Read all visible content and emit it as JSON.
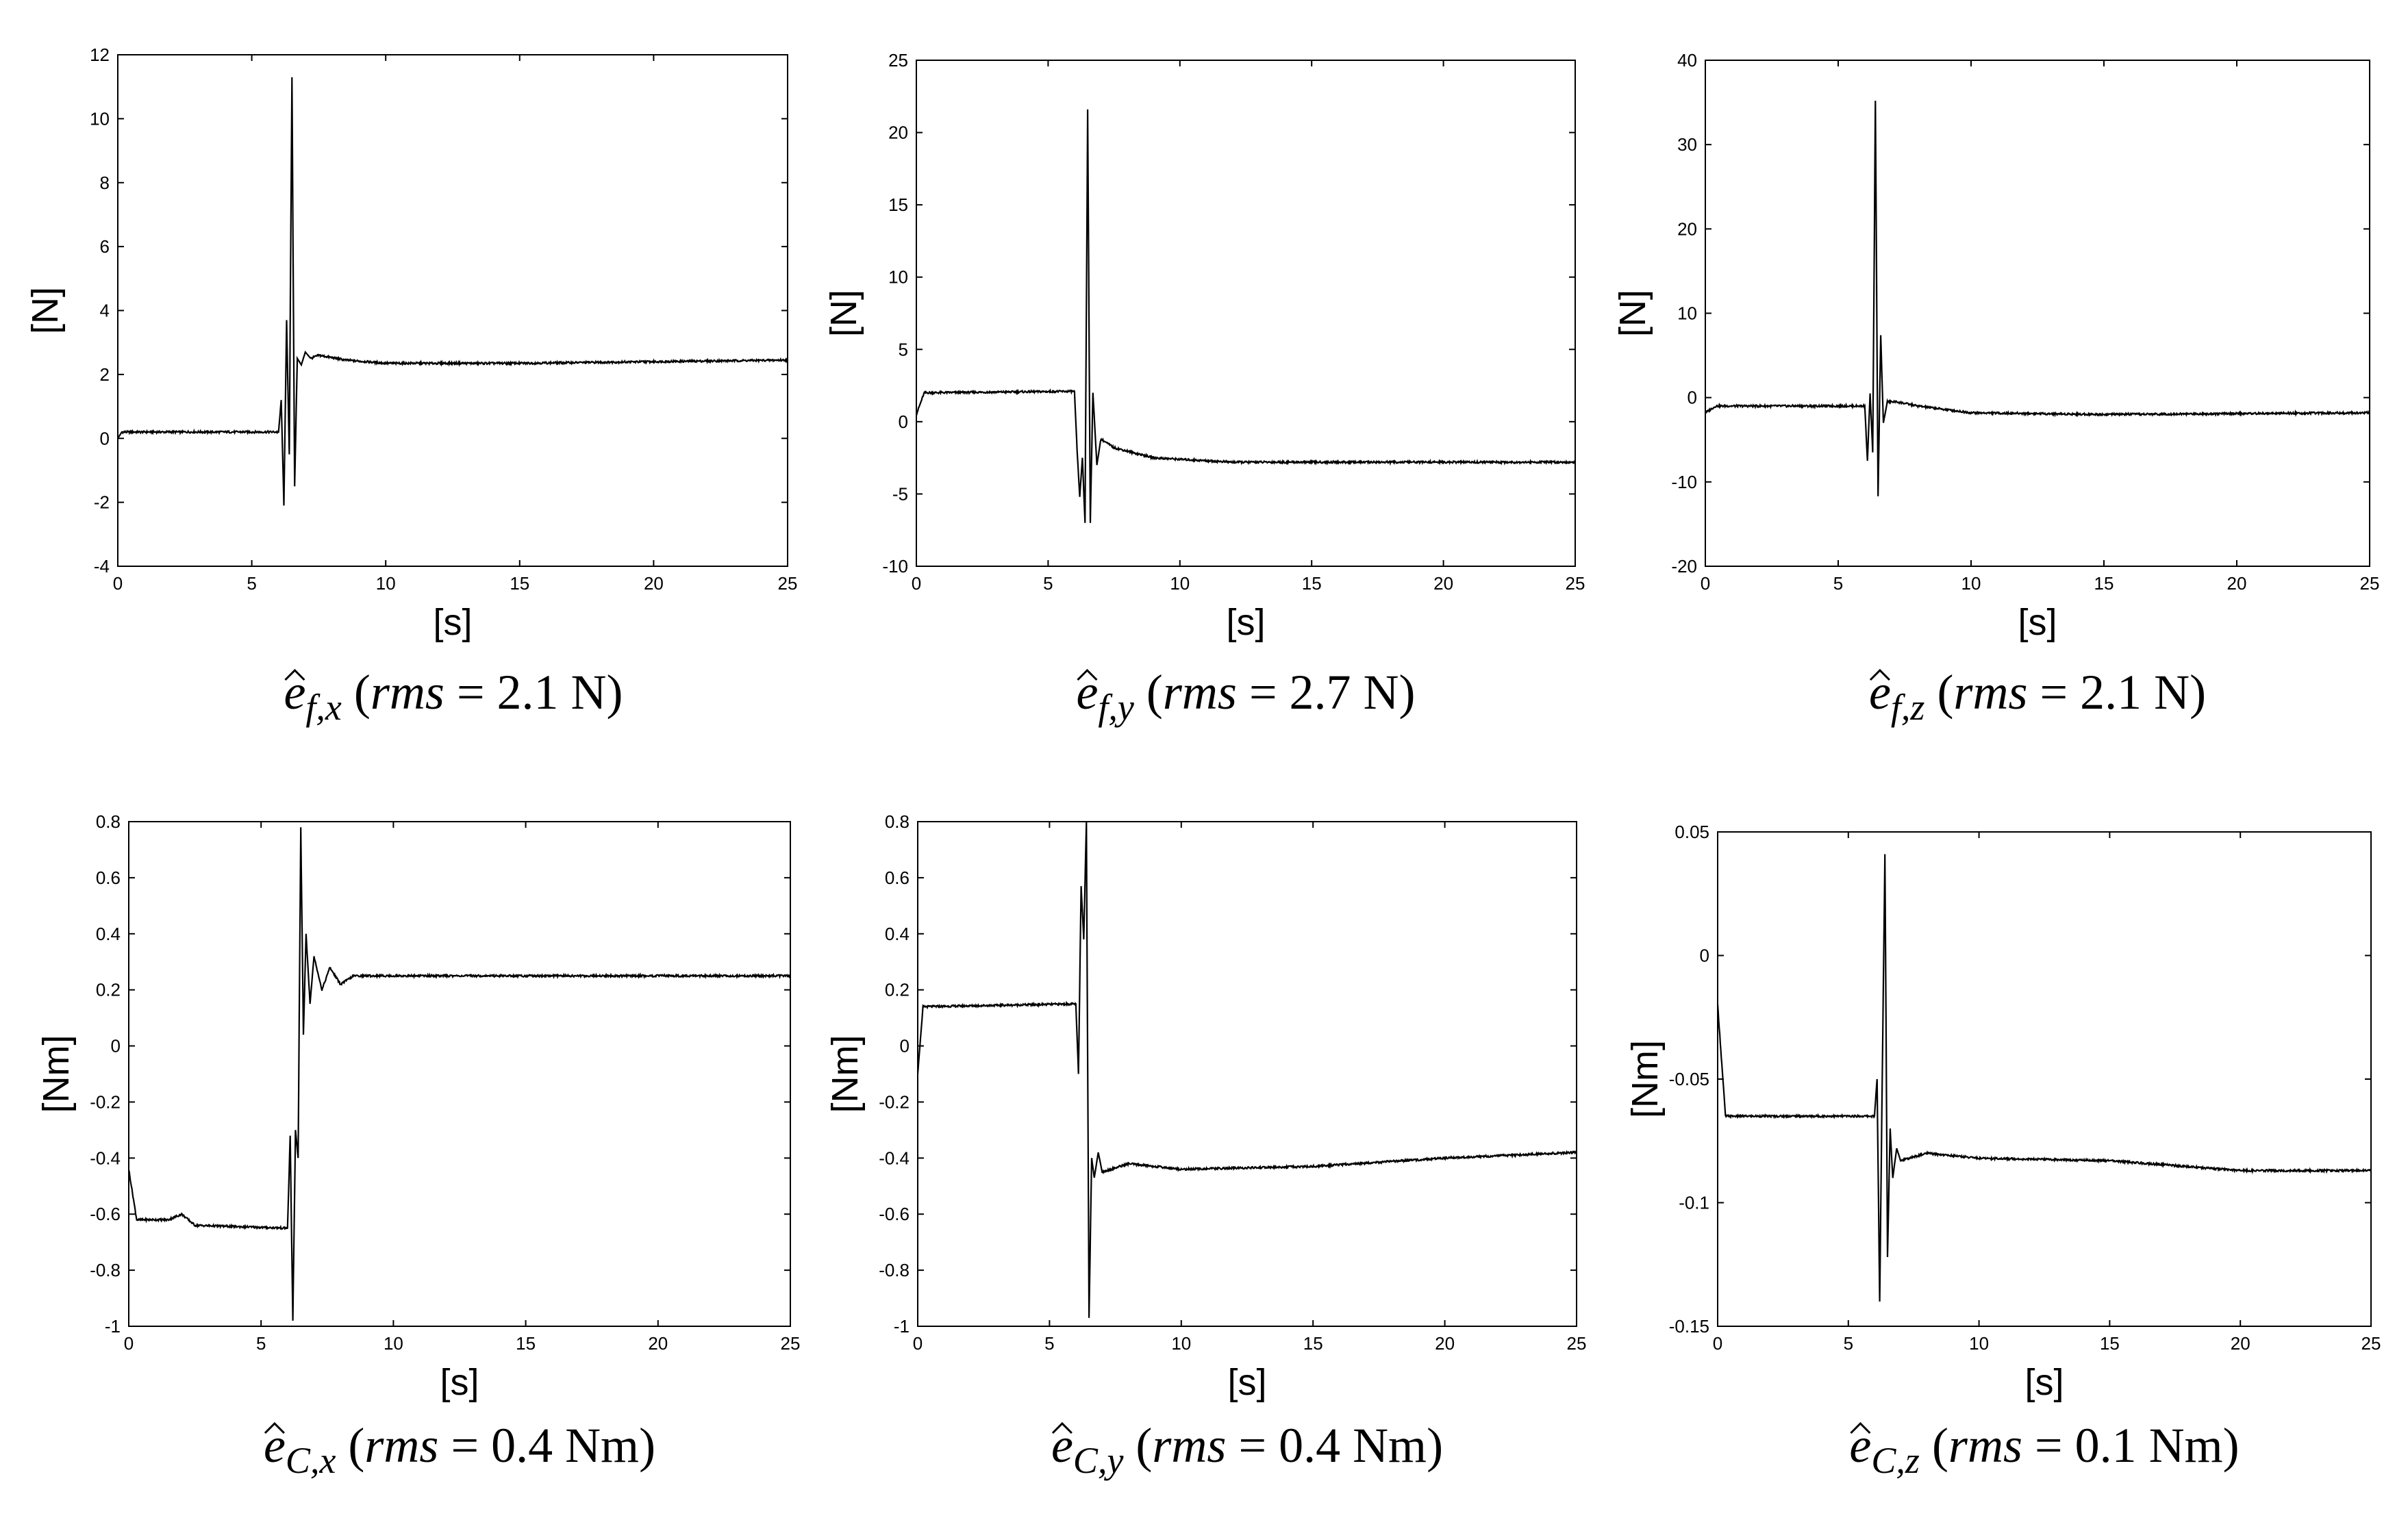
{
  "chart_data": [
    {
      "type": "line",
      "id": "ef_x",
      "xlabel": "[s]",
      "ylabel": "[N]",
      "xlim": [
        0,
        25
      ],
      "ylim": [
        -4,
        12
      ],
      "xticks": [
        0,
        5,
        10,
        15,
        20,
        25
      ],
      "yticks": [
        -4,
        -2,
        0,
        2,
        4,
        6,
        8,
        10,
        12
      ],
      "caption": {
        "symbol": "e",
        "subscript": "f,x",
        "rms_label": "rms",
        "equals": "=",
        "value": "2.1",
        "unit": "N"
      },
      "series": [
        {
          "name": "ef_x",
          "keypoints": [
            [
              0,
              0.0
            ],
            [
              0.15,
              0.2
            ],
            [
              6.0,
              0.2
            ],
            [
              6.1,
              1.2
            ],
            [
              6.2,
              -2.1
            ],
            [
              6.3,
              3.7
            ],
            [
              6.4,
              -0.5
            ],
            [
              6.5,
              11.3
            ],
            [
              6.6,
              -1.5
            ],
            [
              6.7,
              2.5
            ],
            [
              6.85,
              2.3
            ],
            [
              7.0,
              2.7
            ],
            [
              7.2,
              2.5
            ],
            [
              7.5,
              2.6
            ],
            [
              8.5,
              2.45
            ],
            [
              10,
              2.35
            ],
            [
              15,
              2.35
            ],
            [
              20,
              2.4
            ],
            [
              25,
              2.45
            ]
          ]
        }
      ]
    },
    {
      "type": "line",
      "id": "ef_y",
      "xlabel": "[s]",
      "ylabel": "[N]",
      "xlim": [
        0,
        25
      ],
      "ylim": [
        -10,
        25
      ],
      "xticks": [
        0,
        5,
        10,
        15,
        20,
        25
      ],
      "yticks": [
        -10,
        -5,
        0,
        5,
        10,
        15,
        20,
        25
      ],
      "caption": {
        "symbol": "e",
        "subscript": "f,y",
        "rms_label": "rms",
        "equals": "=",
        "value": "2.7",
        "unit": "N"
      },
      "series": [
        {
          "name": "ef_y",
          "keypoints": [
            [
              0,
              0.5
            ],
            [
              0.3,
              2.0
            ],
            [
              6.0,
              2.1
            ],
            [
              6.1,
              -2.0
            ],
            [
              6.2,
              -5.2
            ],
            [
              6.3,
              -2.5
            ],
            [
              6.4,
              -7.0
            ],
            [
              6.5,
              21.6
            ],
            [
              6.6,
              -7.0
            ],
            [
              6.7,
              2.0
            ],
            [
              6.85,
              -3.0
            ],
            [
              7.0,
              -1.2
            ],
            [
              7.5,
              -1.8
            ],
            [
              9,
              -2.5
            ],
            [
              12,
              -2.8
            ],
            [
              25,
              -2.8
            ]
          ]
        }
      ]
    },
    {
      "type": "line",
      "id": "ef_z",
      "xlabel": "[s]",
      "ylabel": "[N]",
      "xlim": [
        0,
        25
      ],
      "ylim": [
        -20,
        40
      ],
      "xticks": [
        0,
        5,
        10,
        15,
        20,
        25
      ],
      "yticks": [
        -20,
        -10,
        0,
        10,
        20,
        30,
        40
      ],
      "caption": {
        "symbol": "e",
        "subscript": "f,z",
        "rms_label": "rms",
        "equals": "=",
        "value": "2.1",
        "unit": "N"
      },
      "series": [
        {
          "name": "ef_z",
          "keypoints": [
            [
              0,
              -1.8
            ],
            [
              0.4,
              -1.0
            ],
            [
              6.0,
              -1.0
            ],
            [
              6.1,
              -7.5
            ],
            [
              6.2,
              0.5
            ],
            [
              6.3,
              -6.5
            ],
            [
              6.4,
              35.2
            ],
            [
              6.5,
              -11.7
            ],
            [
              6.6,
              7.4
            ],
            [
              6.7,
              -3.0
            ],
            [
              6.85,
              -0.5
            ],
            [
              7.2,
              -0.5
            ],
            [
              8,
              -1.0
            ],
            [
              10,
              -1.8
            ],
            [
              15,
              -2.0
            ],
            [
              25,
              -1.8
            ]
          ]
        }
      ]
    },
    {
      "type": "line",
      "id": "ec_x",
      "xlabel": "[s]",
      "ylabel": "[Nm]",
      "xlim": [
        0,
        25
      ],
      "ylim": [
        -1,
        0.8
      ],
      "xticks": [
        0,
        5,
        10,
        15,
        20,
        25
      ],
      "yticks": [
        -1,
        -0.8,
        -0.6,
        -0.4,
        -0.2,
        0,
        0.2,
        0.4,
        0.6,
        0.8
      ],
      "caption": {
        "symbol": "e",
        "subscript": "C,x",
        "rms_label": "rms",
        "equals": "=",
        "value": "0.4",
        "unit": "Nm"
      },
      "series": [
        {
          "name": "ec_x",
          "keypoints": [
            [
              0,
              -0.44
            ],
            [
              0.3,
              -0.62
            ],
            [
              1.5,
              -0.62
            ],
            [
              2.0,
              -0.6
            ],
            [
              2.5,
              -0.64
            ],
            [
              6.0,
              -0.65
            ],
            [
              6.1,
              -0.32
            ],
            [
              6.2,
              -0.98
            ],
            [
              6.3,
              -0.3
            ],
            [
              6.4,
              -0.4
            ],
            [
              6.5,
              0.78
            ],
            [
              6.6,
              0.04
            ],
            [
              6.7,
              0.4
            ],
            [
              6.85,
              0.15
            ],
            [
              7.0,
              0.32
            ],
            [
              7.3,
              0.2
            ],
            [
              7.6,
              0.28
            ],
            [
              8,
              0.22
            ],
            [
              8.5,
              0.25
            ],
            [
              10,
              0.25
            ],
            [
              25,
              0.25
            ]
          ]
        }
      ]
    },
    {
      "type": "line",
      "id": "ec_y",
      "xlabel": "[s]",
      "ylabel": "[Nm]",
      "xlim": [
        0,
        25
      ],
      "ylim": [
        -1,
        0.8
      ],
      "xticks": [
        0,
        5,
        10,
        15,
        20,
        25
      ],
      "yticks": [
        -1,
        -0.8,
        -0.6,
        -0.4,
        -0.2,
        0,
        0.2,
        0.4,
        0.6,
        0.8
      ],
      "caption": {
        "symbol": "e",
        "subscript": "C,y",
        "rms_label": "rms",
        "equals": "=",
        "value": "0.4",
        "unit": "Nm"
      },
      "series": [
        {
          "name": "ec_y",
          "keypoints": [
            [
              0,
              -0.1
            ],
            [
              0.2,
              0.14
            ],
            [
              6.0,
              0.15
            ],
            [
              6.1,
              -0.1
            ],
            [
              6.2,
              0.57
            ],
            [
              6.3,
              0.38
            ],
            [
              6.4,
              0.8
            ],
            [
              6.5,
              -0.97
            ],
            [
              6.6,
              -0.4
            ],
            [
              6.7,
              -0.47
            ],
            [
              6.85,
              -0.38
            ],
            [
              7.0,
              -0.45
            ],
            [
              8,
              -0.42
            ],
            [
              10,
              -0.44
            ],
            [
              15,
              -0.43
            ],
            [
              20,
              -0.4
            ],
            [
              25,
              -0.38
            ]
          ]
        }
      ]
    },
    {
      "type": "line",
      "id": "ec_z",
      "xlabel": "[s]",
      "ylabel": "[Nm]",
      "xlim": [
        0,
        25
      ],
      "ylim": [
        -0.15,
        0.05
      ],
      "xticks": [
        0,
        5,
        10,
        15,
        20,
        25
      ],
      "yticks": [
        -0.15,
        -0.1,
        -0.05,
        0,
        0.05
      ],
      "caption": {
        "symbol": "e",
        "subscript": "C,z",
        "rms_label": "rms",
        "equals": "=",
        "value": "0.1",
        "unit": "Nm"
      },
      "series": [
        {
          "name": "ec_z",
          "keypoints": [
            [
              0,
              -0.02
            ],
            [
              0.3,
              -0.065
            ],
            [
              6.0,
              -0.065
            ],
            [
              6.1,
              -0.05
            ],
            [
              6.2,
              -0.14
            ],
            [
              6.3,
              -0.048
            ],
            [
              6.4,
              0.041
            ],
            [
              6.5,
              -0.122
            ],
            [
              6.6,
              -0.07
            ],
            [
              6.7,
              -0.09
            ],
            [
              6.85,
              -0.078
            ],
            [
              7.0,
              -0.083
            ],
            [
              8,
              -0.08
            ],
            [
              10,
              -0.082
            ],
            [
              15,
              -0.083
            ],
            [
              20,
              -0.087
            ],
            [
              25,
              -0.087
            ]
          ]
        }
      ]
    }
  ]
}
